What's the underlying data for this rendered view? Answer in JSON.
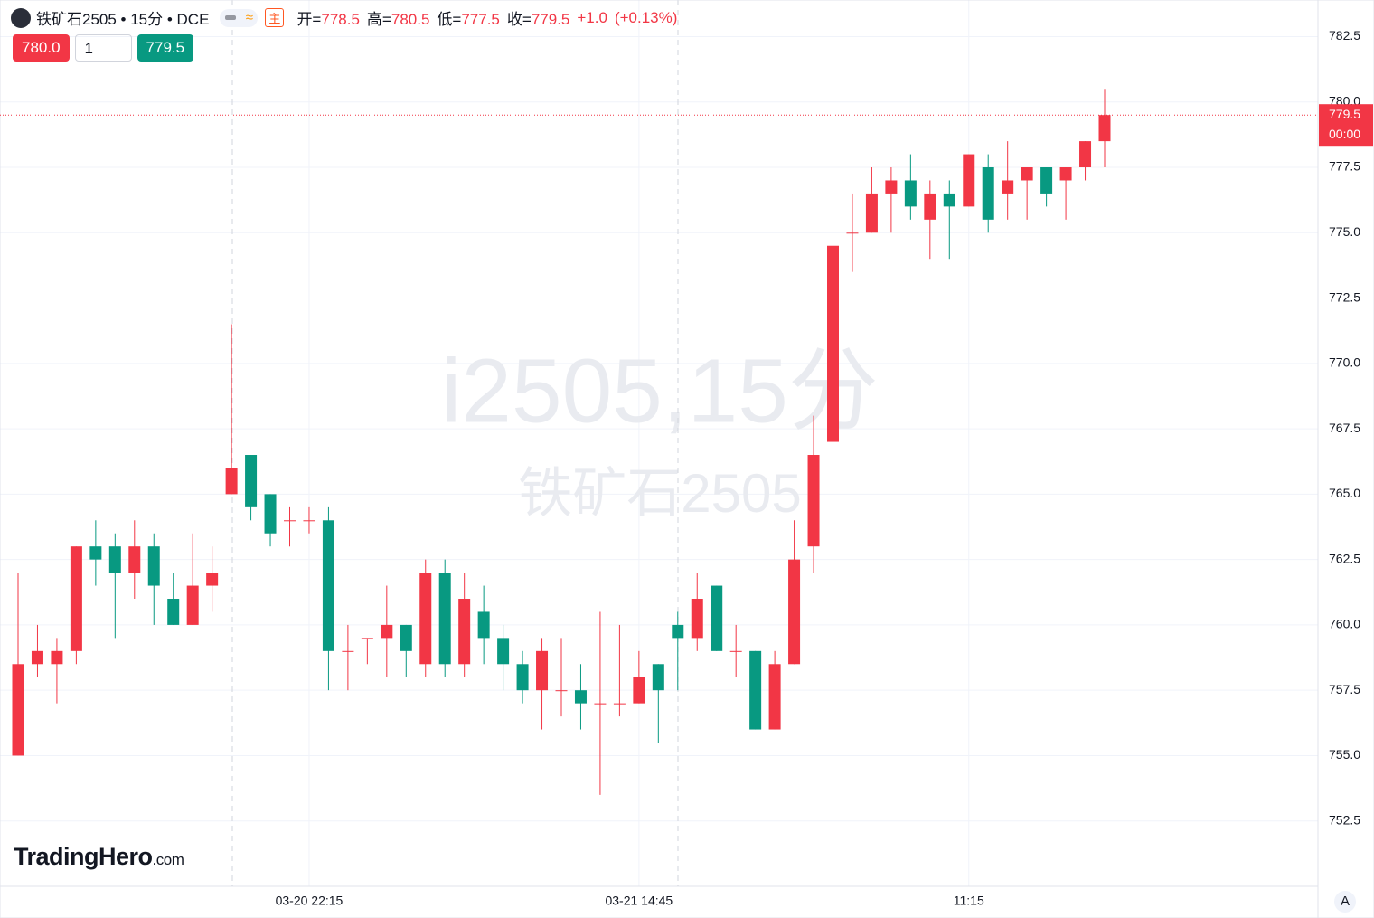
{
  "header": {
    "symbol": "铁矿石2505 • 15分 • DCE",
    "icons": [
      "≈",
      "主"
    ],
    "ohlc": [
      {
        "label": "开=",
        "value": 778.5
      },
      {
        "label": "高=",
        "value": 780.5
      },
      {
        "label": "低=",
        "value": 777.5
      },
      {
        "label": "收=",
        "value": 779.5
      }
    ],
    "change": "+1.0",
    "change_pct": "(+0.13%)"
  },
  "trade_panel": {
    "sell": "780.0",
    "quantity": "1",
    "buy": "779.5"
  },
  "watermark": {
    "line1": "i2505,15分",
    "line2": "铁矿石2505"
  },
  "logo": {
    "name": "TradingHero",
    "suffix": ".com"
  },
  "axis_button": "A",
  "chart_data": {
    "type": "candlestick",
    "categories": [
      null,
      null,
      null,
      null,
      null,
      null,
      null,
      null,
      null,
      null,
      null,
      null,
      null,
      null,
      null,
      "03-20 22:15",
      null,
      null,
      null,
      null,
      null,
      null,
      null,
      null,
      null,
      null,
      null,
      null,
      null,
      null,
      null,
      null,
      "03-21 14:45",
      null,
      null,
      null,
      null,
      null,
      null,
      null,
      null,
      null,
      null,
      null,
      null,
      null,
      null,
      null,
      null,
      "11:15",
      null,
      null,
      null,
      null,
      null,
      null,
      null
    ],
    "open": [
      755,
      758.5,
      758.5,
      759,
      763,
      763,
      762,
      763,
      761,
      760,
      761.5,
      765,
      766.5,
      765,
      764,
      764,
      764,
      759,
      759.5,
      759.5,
      760,
      758.5,
      762,
      758.5,
      760.5,
      759.5,
      758.5,
      757.5,
      757.5,
      757.5,
      757,
      757,
      757,
      758.5,
      760,
      759.5,
      761.5,
      759,
      759,
      756,
      758.5,
      763,
      767,
      775,
      775,
      776.5,
      777,
      775.5,
      776.5,
      776,
      777.5,
      776.5,
      777,
      777.5,
      777,
      777.5,
      778.5
    ],
    "high": [
      762,
      760,
      759.5,
      763,
      764,
      763.5,
      764,
      763.5,
      762,
      763.5,
      763,
      771.5,
      766.5,
      765,
      764.5,
      764.5,
      764.5,
      760,
      759.5,
      761.5,
      760,
      762.5,
      762.5,
      762,
      761.5,
      760,
      759,
      759.5,
      759.5,
      758.5,
      760.5,
      760,
      759,
      758.5,
      760.5,
      762,
      761.5,
      760,
      759,
      759,
      764,
      768,
      777.5,
      776.5,
      777.5,
      777.5,
      778,
      777,
      777,
      778,
      778,
      778.5,
      777.5,
      777.5,
      777.5,
      778.5,
      780.5
    ],
    "low": [
      755,
      758,
      757,
      758.5,
      761.5,
      759.5,
      761,
      760,
      760,
      760,
      760.5,
      765,
      764,
      763,
      763,
      763.5,
      757.5,
      757.5,
      758.5,
      758,
      758,
      758,
      758,
      758,
      758.5,
      757.5,
      757,
      756,
      756.5,
      756,
      753.5,
      756.5,
      757,
      755.5,
      757.5,
      759,
      759,
      758,
      756,
      756,
      758.5,
      762,
      767,
      773.5,
      775,
      775,
      775.5,
      774,
      774,
      776,
      775,
      775.5,
      775.5,
      776,
      775.5,
      777,
      777.5
    ],
    "close": [
      758.5,
      759,
      759,
      763,
      762.5,
      762,
      763,
      761.5,
      760,
      761.5,
      762,
      766,
      764.5,
      763.5,
      764,
      764,
      759,
      759,
      759.5,
      760,
      759,
      762,
      758.5,
      761,
      759.5,
      758.5,
      757.5,
      759,
      757.5,
      757,
      757,
      757,
      758,
      757.5,
      759.5,
      761,
      759,
      759,
      756,
      758.5,
      762.5,
      766.5,
      774.5,
      775,
      776.5,
      777,
      776,
      776.5,
      776,
      778,
      775.5,
      777,
      777.5,
      776.5,
      777.5,
      778.5,
      779.5
    ],
    "up_color": "#f23645",
    "down_color": "#089981",
    "ylim": [
      750.0,
      783.9
    ],
    "yticks": [
      752.5,
      {
        "value": 755,
        "label": "755.0"
      },
      757.5,
      {
        "value": 760,
        "label": "760.0"
      },
      762.5,
      {
        "value": 765,
        "label": "765.0"
      },
      767.5,
      {
        "value": 770,
        "label": "770.0"
      },
      772.5,
      {
        "value": 775,
        "label": "775.0"
      },
      777.5,
      {
        "value": 780,
        "label": "780.0"
      },
      782.5
    ],
    "grid": true,
    "last_price": {
      "value": 779.5,
      "countdown": "00:00"
    }
  }
}
